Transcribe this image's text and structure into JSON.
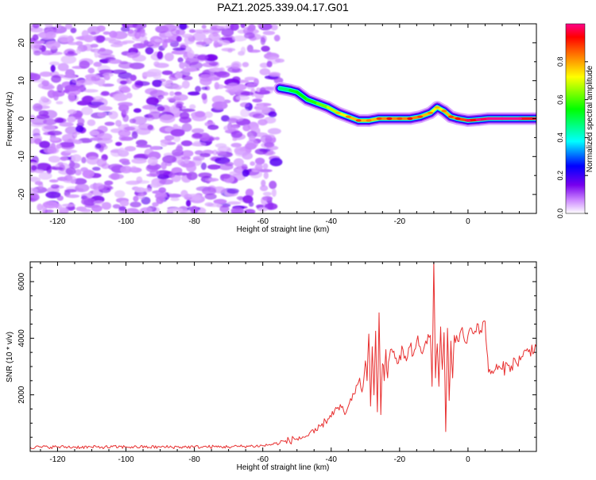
{
  "title": "PAZ1.2025.339.04.17.G01",
  "chart_data": [
    {
      "type": "heatmap",
      "name": "spectrogram",
      "xlabel": "Height of straight line (km)",
      "ylabel": "Frequency (Hz)",
      "xlim": [
        -128,
        20
      ],
      "ylim": [
        -25,
        25
      ],
      "xticks": [
        -120,
        -100,
        -80,
        -60,
        -40,
        -20,
        0
      ],
      "yticks": [
        -20,
        -10,
        0,
        10,
        20
      ],
      "noise_region": {
        "x_range": [
          -128,
          -55
        ],
        "y_range": [
          -25,
          25
        ],
        "amplitude_range": [
          0.0,
          0.3
        ]
      },
      "signal_ridge": {
        "x": [
          -55,
          -52,
          -50,
          -47,
          -44,
          -41,
          -38,
          -35,
          -32,
          -29,
          -26,
          -23,
          -20,
          -17,
          -14,
          -11,
          -9,
          -7,
          -5,
          -3,
          0,
          3,
          6,
          10,
          15,
          20
        ],
        "frequency": [
          8,
          7.5,
          7,
          5,
          4,
          3,
          1.5,
          0.5,
          -0.5,
          -0.5,
          0,
          0,
          0,
          0,
          0.5,
          1.5,
          3,
          2,
          0.5,
          0,
          -0.5,
          -0.3,
          0,
          0,
          0,
          0
        ],
        "amplitude": [
          0.45,
          0.5,
          0.55,
          0.55,
          0.6,
          0.65,
          0.7,
          0.75,
          0.8,
          0.75,
          0.8,
          0.85,
          0.8,
          0.85,
          0.8,
          0.75,
          0.7,
          0.75,
          0.8,
          0.85,
          0.9,
          0.95,
          1.0,
          1.0,
          1.0,
          0.9
        ]
      },
      "colorbar": {
        "label": "Normalized spectral amplitude",
        "range": [
          0.0,
          1.0
        ],
        "ticks": [
          "0.0",
          "0.2",
          "0.4",
          "0.6",
          "0.8"
        ],
        "colors": [
          "#ffffff",
          "#cc88ff",
          "#7700ee",
          "#0000ff",
          "#00ffff",
          "#00ff00",
          "#ffff00",
          "#ff6600",
          "#ff0000",
          "#ff0088"
        ]
      }
    },
    {
      "type": "line",
      "name": "snr",
      "xlabel": "Height of straight line (km)",
      "ylabel": "SNR (10 * v/v)",
      "xlim": [
        -128,
        20
      ],
      "ylim": [
        0,
        6700
      ],
      "xticks": [
        -120,
        -100,
        -80,
        -60,
        -40,
        -20,
        0
      ],
      "yticks": [
        2000,
        4000,
        6000
      ],
      "color": "#e83030",
      "series": [
        {
          "name": "SNR",
          "x": [
            -128,
            -120,
            -110,
            -100,
            -90,
            -80,
            -70,
            -60,
            -55,
            -50,
            -47,
            -45,
            -43,
            -41,
            -39,
            -37,
            -36,
            -35,
            -34,
            -33,
            -32,
            -31,
            -30,
            -29.5,
            -29,
            -28.5,
            -28,
            -27.5,
            -27,
            -26.5,
            -26,
            -25.5,
            -25,
            -24.5,
            -24,
            -23.5,
            -23,
            -22,
            -21,
            -20,
            -19,
            -18,
            -17,
            -16,
            -15,
            -14,
            -13,
            -12,
            -11,
            -10.5,
            -10,
            -9.5,
            -9,
            -8.5,
            -8,
            -7.5,
            -7,
            -6.5,
            -6,
            -5.5,
            -5,
            -4.5,
            -4,
            -3,
            -2,
            -1,
            0,
            1,
            2,
            3,
            4,
            5,
            5.5,
            6,
            7,
            8,
            10,
            12,
            14,
            16,
            18,
            20
          ],
          "y": [
            150,
            160,
            150,
            160,
            155,
            160,
            165,
            200,
            300,
            450,
            550,
            650,
            900,
            1150,
            1450,
            1550,
            1300,
            1600,
            1800,
            2050,
            2450,
            2100,
            3200,
            2500,
            4150,
            1600,
            3700,
            2000,
            4250,
            1400,
            4900,
            1300,
            3100,
            2500,
            3600,
            2600,
            3300,
            3500,
            3300,
            3400,
            3600,
            3200,
            3700,
            3400,
            3900,
            3700,
            3600,
            3800,
            4100,
            2300,
            6700,
            2600,
            3800,
            2300,
            4400,
            2900,
            4200,
            700,
            4350,
            1800,
            3900,
            2600,
            4100,
            3900,
            4300,
            3900,
            4100,
            4350,
            4250,
            4500,
            4200,
            4600,
            3600,
            2800,
            2850,
            2900,
            2900,
            3050,
            3150,
            3350,
            3600,
            3700
          ]
        }
      ]
    }
  ]
}
